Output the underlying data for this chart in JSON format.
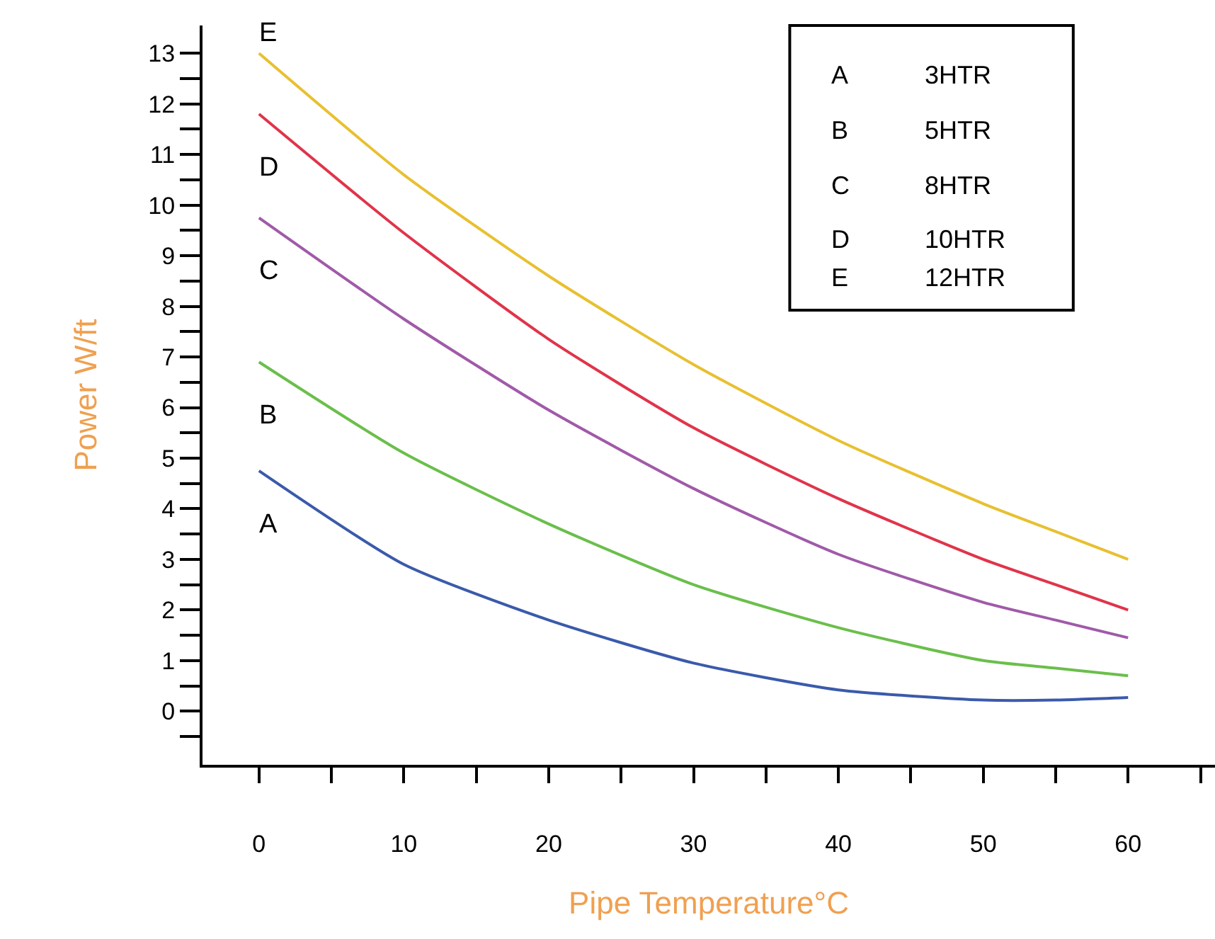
{
  "chart_data": {
    "type": "line",
    "xlabel": "Pipe Temperature°C",
    "ylabel": "Power W/ft",
    "x": [
      0,
      10,
      20,
      30,
      40,
      50,
      55,
      60
    ],
    "series": [
      {
        "name": "A",
        "color": "#3a5aab",
        "values": [
          4.75,
          2.9,
          1.8,
          0.95,
          0.42,
          0.22,
          0.22,
          0.27
        ]
      },
      {
        "name": "B",
        "color": "#6abf4b",
        "values": [
          6.9,
          5.1,
          3.7,
          2.5,
          1.65,
          1.0,
          0.85,
          0.7
        ]
      },
      {
        "name": "C",
        "color": "#a05aa8",
        "values": [
          9.75,
          7.75,
          5.95,
          4.4,
          3.1,
          2.15,
          1.8,
          1.45
        ]
      },
      {
        "name": "D",
        "color": "#e0344a",
        "values": [
          11.8,
          9.45,
          7.35,
          5.6,
          4.2,
          3.0,
          2.5,
          2.0
        ]
      },
      {
        "name": "E",
        "color": "#e8c030",
        "values": [
          13.0,
          10.6,
          8.6,
          6.85,
          5.35,
          4.1,
          3.55,
          3.0
        ]
      }
    ],
    "annotations": [
      "3HTR",
      "5HTR",
      "8HTR",
      "10HTR",
      "12HTR"
    ],
    "grid": false,
    "marker": "none",
    "line_style": "solid",
    "xlim": [
      -3.9,
      66
    ],
    "ylim": [
      -1.06,
      13.55
    ],
    "xticks": [
      0,
      {
        "value": 5,
        "label": null
      },
      10,
      {
        "value": 15,
        "label": null
      },
      20,
      {
        "value": 25,
        "label": null
      },
      30,
      {
        "value": 35,
        "label": null
      },
      40,
      {
        "value": 45,
        "label": null
      },
      50,
      {
        "value": 55,
        "label": null
      },
      60,
      {
        "value": 65,
        "label": null
      }
    ],
    "yticks": [
      {
        "value": -0.5,
        "label": null
      },
      0,
      {
        "value": 0.5,
        "label": null
      },
      1,
      {
        "value": 1.5,
        "label": null
      },
      2,
      {
        "value": 2.5,
        "label": null
      },
      3,
      {
        "value": 3.5,
        "label": null
      },
      4,
      {
        "value": 4.5,
        "label": null
      },
      5,
      {
        "value": 5.5,
        "label": null
      },
      6,
      {
        "value": 6.5,
        "label": null
      },
      7,
      {
        "value": 7.5,
        "label": null
      },
      8,
      {
        "value": 8.5,
        "label": null
      },
      9,
      {
        "value": 9.5,
        "label": null
      },
      10,
      {
        "value": 10.5,
        "label": null
      },
      11,
      {
        "value": 11.5,
        "label": null
      },
      12,
      {
        "value": 12.5,
        "label": null
      },
      13
    ]
  }
}
